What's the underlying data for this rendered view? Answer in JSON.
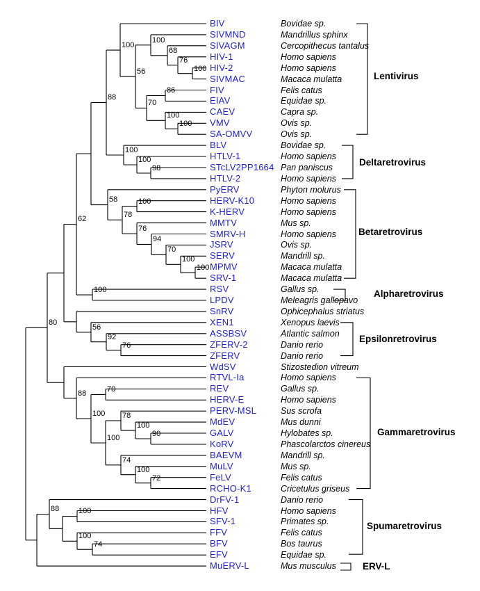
{
  "figure": {
    "type": "phylogenetic-tree",
    "background_color": "#ffffff",
    "branch_color": "#000000",
    "taxon_color": "#2222cc",
    "text_color": "#000000"
  },
  "taxa": [
    {
      "name": "BIV",
      "species": "Bovidae sp."
    },
    {
      "name": "SIVMND",
      "species": "Mandrillus sphinx"
    },
    {
      "name": "SIVAGM",
      "species": "Cercopithecus tantalus"
    },
    {
      "name": "HIV-1",
      "species": "Homo sapiens"
    },
    {
      "name": "HIV-2",
      "species": "Homo sapiens"
    },
    {
      "name": "SIVMAC",
      "species": "Macaca mulatta"
    },
    {
      "name": "FIV",
      "species": "Felis catus"
    },
    {
      "name": "EIAV",
      "species": "Equidae sp."
    },
    {
      "name": "CAEV",
      "species": "Capra sp."
    },
    {
      "name": "VMV",
      "species": "Ovis sp."
    },
    {
      "name": "SA-OMVV",
      "species": "Ovis sp."
    },
    {
      "name": "BLV",
      "species": "Bovidae sp."
    },
    {
      "name": "HTLV-1",
      "species": "Homo sapiens"
    },
    {
      "name": "STcLV2PP1664",
      "species": "Pan paniscus"
    },
    {
      "name": "HTLV-2",
      "species": "Homo sapiens"
    },
    {
      "name": "PyERV",
      "species": "Phyton molurus"
    },
    {
      "name": "HERV-K10",
      "species": "Homo sapiens"
    },
    {
      "name": "K-HERV",
      "species": "Homo sapiens"
    },
    {
      "name": "MMTV",
      "species": "Mus sp."
    },
    {
      "name": "SMRV-H",
      "species": "Homo sapiens"
    },
    {
      "name": "JSRV",
      "species": "Ovis sp."
    },
    {
      "name": "SERV",
      "species": "Mandrill sp."
    },
    {
      "name": "MPMV",
      "species": "Macaca mulatta"
    },
    {
      "name": "SRV-1",
      "species": "Macaca mulatta"
    },
    {
      "name": "RSV",
      "species": "Gallus sp."
    },
    {
      "name": "LPDV",
      "species": "Meleagris gallopavo"
    },
    {
      "name": "SnRV",
      "species": "Ophicephalus striatus"
    },
    {
      "name": "XEN1",
      "species": "Xenopus laevis"
    },
    {
      "name": "ASSBSV",
      "species": "Atlantic salmon"
    },
    {
      "name": "ZFERV-2",
      "species": "Danio rerio"
    },
    {
      "name": "ZFERV",
      "species": "Danio rerio"
    },
    {
      "name": "WdSV",
      "species": "Stizostedion vitreum"
    },
    {
      "name": "RTVL-Ia",
      "species": "Homo sapiens"
    },
    {
      "name": "REV",
      "species": "Gallus sp."
    },
    {
      "name": "HERV-E",
      "species": "Homo sapiens"
    },
    {
      "name": "PERV-MSL",
      "species": "Sus scrofa"
    },
    {
      "name": "MdEV",
      "species": "Mus dunni"
    },
    {
      "name": "GALV",
      "species": "Hylobates sp."
    },
    {
      "name": "KoRV",
      "species": "Phascolarctos cinereus"
    },
    {
      "name": "BAEVM",
      "species": "Mandrill sp."
    },
    {
      "name": "MuLV",
      "species": "Mus sp."
    },
    {
      "name": "FeLV",
      "species": "Felis catus"
    },
    {
      "name": "RCHO-K1",
      "species": "Cricetulus griseus"
    },
    {
      "name": "DrFV-1",
      "species": "Danio rerio"
    },
    {
      "name": "HFV",
      "species": "Homo sapiens"
    },
    {
      "name": "SFV-1",
      "species": "Primates sp."
    },
    {
      "name": "FFV",
      "species": "Felis catus"
    },
    {
      "name": "BFV",
      "species": "Bos taurus"
    },
    {
      "name": "EFV",
      "species": "Equidae sp."
    },
    {
      "name": "MuERV-L",
      "species": "Mus musculus"
    }
  ],
  "bootstraps": [
    "100",
    "100",
    "68",
    "76",
    "100",
    "56",
    "86",
    "70",
    "100",
    "100",
    "88",
    "100",
    "100",
    "98",
    "58",
    "100",
    "78",
    "76",
    "94",
    "70",
    "100",
    "100",
    "62",
    "100",
    "80",
    "56",
    "92",
    "76",
    "88",
    "70",
    "100",
    "100",
    "78",
    "100",
    "90",
    "74",
    "100",
    "72",
    "88",
    "100",
    "100",
    "74"
  ],
  "genera": [
    {
      "name": "Lentivirus",
      "first_taxon": "BIV",
      "last_taxon": "SA-OMVV"
    },
    {
      "name": "Deltaretrovirus",
      "first_taxon": "BLV",
      "last_taxon": "HTLV-2"
    },
    {
      "name": "Betaretrovirus",
      "first_taxon": "PyERV",
      "last_taxon": "SRV-1"
    },
    {
      "name": "Alpharetrovirus",
      "first_taxon": "RSV",
      "last_taxon": "LPDV"
    },
    {
      "name": "Epsilonretrovirus",
      "first_taxon": "XEN1",
      "last_taxon": "ZFERV"
    },
    {
      "name": "Gammaretrovirus",
      "first_taxon": "RTVL-Ia",
      "last_taxon": "RCHO-K1"
    },
    {
      "name": "Spumaretrovirus",
      "first_taxon": "DrFV-1",
      "last_taxon": "EFV"
    },
    {
      "name": "ERV-L",
      "first_taxon": "MuERV-L",
      "last_taxon": "MuERV-L"
    }
  ]
}
